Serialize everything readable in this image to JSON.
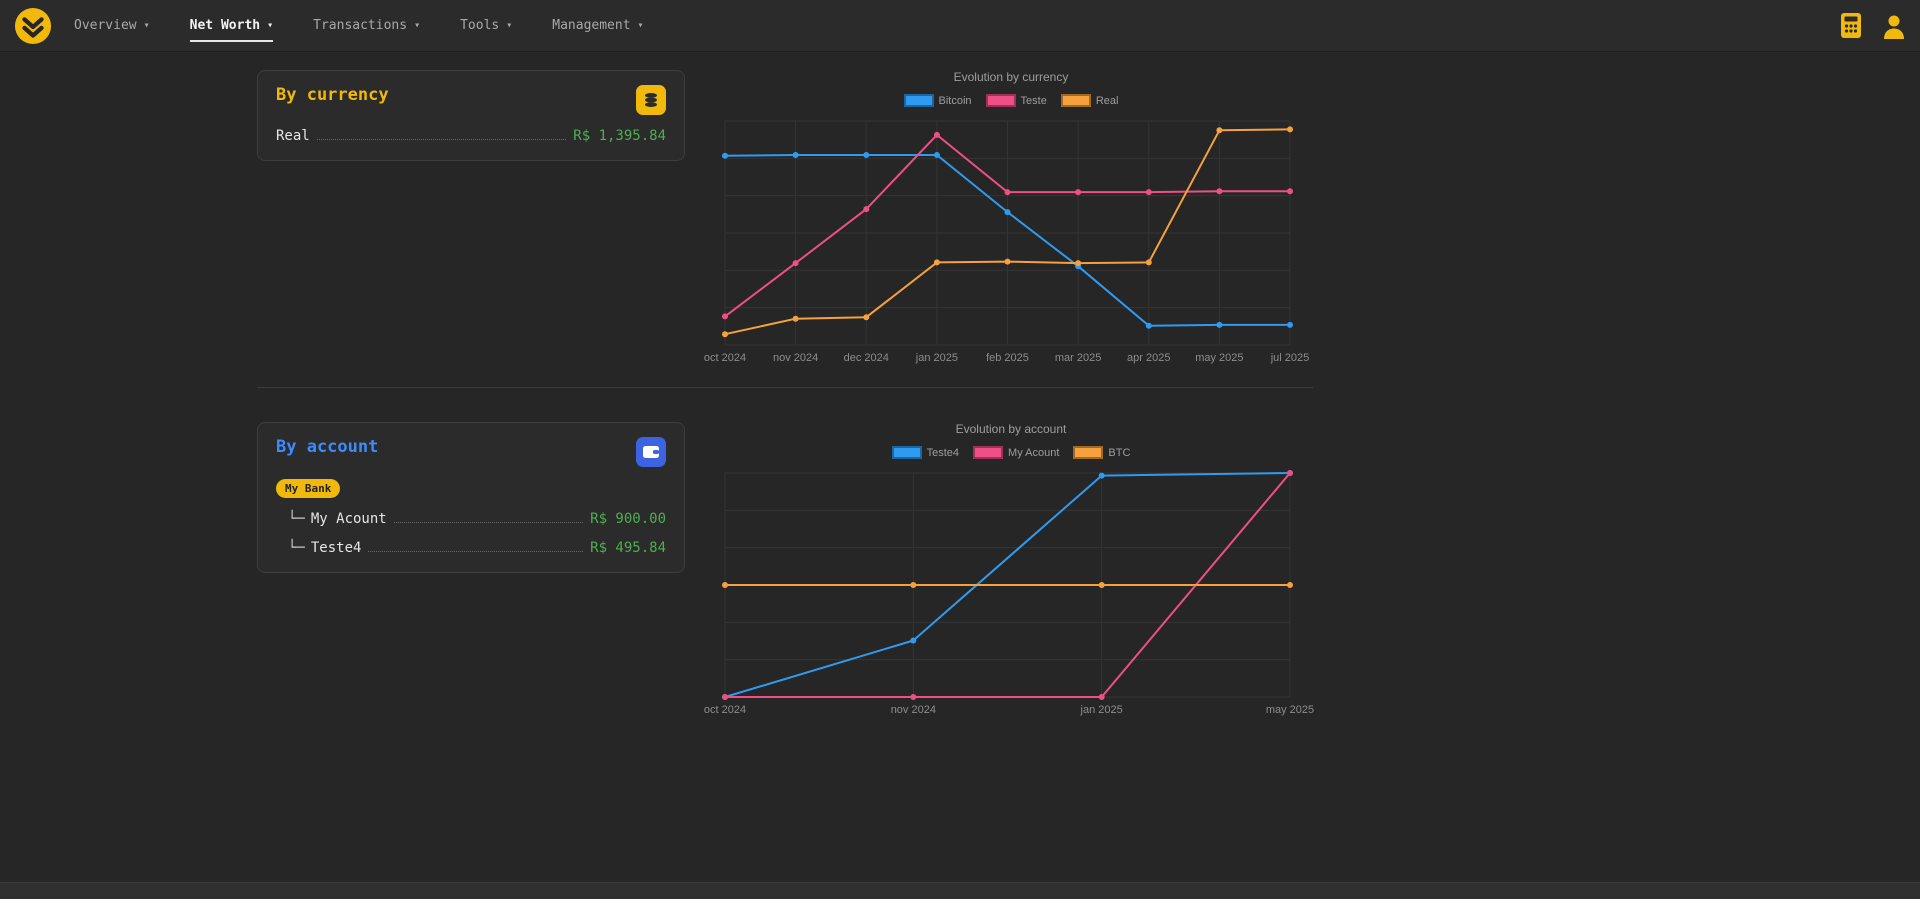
{
  "nav": {
    "items": [
      {
        "label": "Overview",
        "active": false
      },
      {
        "label": "Net Worth",
        "active": true
      },
      {
        "label": "Transactions",
        "active": false
      },
      {
        "label": "Tools",
        "active": false
      },
      {
        "label": "Management",
        "active": false
      }
    ]
  },
  "cards": {
    "currency": {
      "title": "By currency",
      "rows": [
        {
          "label": "Real",
          "value": "R$ 1,395.84"
        }
      ]
    },
    "account": {
      "title": "By account",
      "badge": "My Bank",
      "rows": [
        {
          "prefix": "└─",
          "label": "My Acount",
          "value": "R$ 900.00"
        },
        {
          "prefix": "└─",
          "label": "Teste4",
          "value": "R$ 495.84"
        }
      ]
    }
  },
  "colors": {
    "accent_yellow": "#f0b90b",
    "positive_green": "#4caf50",
    "account_blue": "#3d8bfd",
    "chart_blue": "#2f9bf0",
    "chart_pink": "#ee4f87",
    "chart_orange": "#f5a13d"
  },
  "chart_data": [
    {
      "type": "line",
      "title": "Evolution by currency",
      "categories": [
        "oct 2024",
        "nov 2024",
        "dec 2024",
        "jan 2025",
        "feb 2025",
        "mar 2025",
        "apr 2025",
        "may 2025",
        "jul 2025"
      ],
      "series": [
        {
          "name": "Bitcoin",
          "color": "#2f9bf0",
          "values": [
            1225,
            1230,
            1230,
            1230,
            860,
            510,
            125,
            130,
            130
          ]
        },
        {
          "name": "Teste",
          "color": "#ee4f87",
          "values": [
            185,
            530,
            880,
            1360,
            990,
            990,
            990,
            995,
            995
          ]
        },
        {
          "name": "Real",
          "color": "#f5a13d",
          "values": [
            70,
            170,
            180,
            535,
            540,
            530,
            535,
            1390,
            1395.84
          ]
        }
      ],
      "scale": "shared",
      "ylim": [
        0,
        1450
      ],
      "y_axis_labels": "hidden",
      "grid": true,
      "legend_position": "top"
    },
    {
      "type": "line",
      "title": "Evolution by account",
      "categories": [
        "oct 2024",
        "nov 2024",
        "jan 2025",
        "may 2025"
      ],
      "series": [
        {
          "name": "Teste4",
          "color": "#2f9bf0",
          "values": [
            0,
            125,
            490,
            495.84
          ]
        },
        {
          "name": "My Acount",
          "color": "#ee4f87",
          "values": [
            0,
            0,
            0,
            900
          ]
        },
        {
          "name": "BTC",
          "color": "#f5a13d",
          "values": [
            1,
            1,
            1,
            1
          ]
        }
      ],
      "scale": "per-series",
      "ylim": [
        0,
        1
      ],
      "y_axis_labels": "hidden",
      "grid": true,
      "legend_position": "top"
    }
  ]
}
